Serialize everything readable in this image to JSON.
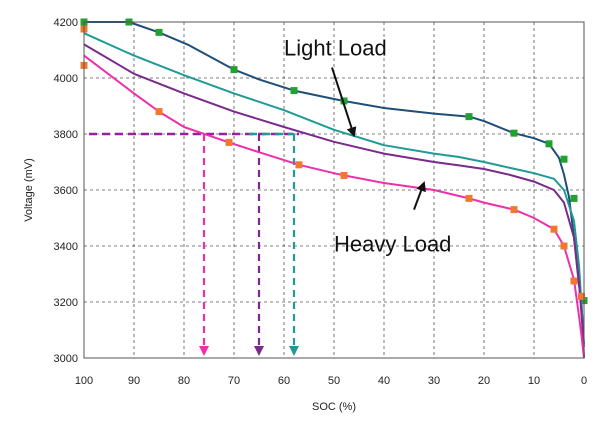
{
  "chart_data": {
    "type": "line",
    "title": "",
    "xlabel": "SOC (%)",
    "ylabel": "Voltage (mV)",
    "xlim": [
      100,
      0
    ],
    "ylim": [
      3000,
      4200
    ],
    "x_ticks": [
      100,
      90,
      80,
      70,
      60,
      50,
      40,
      30,
      20,
      10,
      0
    ],
    "y_ticks": [
      3000,
      3200,
      3400,
      3600,
      3800,
      4000,
      4200
    ],
    "grid": true,
    "grid_style": "dashed",
    "series": [
      {
        "color": "#1f4e79",
        "marker": "square",
        "marker_color": "#22a030",
        "x": [
          100,
          91,
          85,
          79,
          70,
          65,
          58,
          50,
          48,
          40,
          30,
          23,
          20,
          14,
          10,
          7,
          5,
          4,
          3,
          2,
          1,
          0.5,
          0
        ],
        "y": [
          4200,
          4200,
          4163,
          4117,
          4030,
          3995,
          3955,
          3925,
          3918,
          3893,
          3873,
          3862,
          3846,
          3803,
          3785,
          3765,
          3715,
          3655,
          3575,
          3430,
          3260,
          3200,
          3000
        ],
        "marker_x": [
          100,
          91,
          85,
          70,
          58,
          48,
          23,
          14,
          7,
          4,
          2,
          0
        ],
        "marker_y": [
          4200,
          4200,
          4163,
          4030,
          3955,
          3918,
          3862,
          3803,
          3765,
          3710,
          3570,
          3205
        ]
      },
      {
        "color": "#1f9b96",
        "marker": "none",
        "x": [
          100,
          90,
          80,
          70,
          60,
          50,
          40,
          30,
          25,
          20,
          15,
          10,
          6,
          4,
          2,
          1,
          0
        ],
        "y": [
          4160,
          4080,
          4010,
          3945,
          3885,
          3815,
          3760,
          3730,
          3718,
          3700,
          3680,
          3660,
          3640,
          3600,
          3490,
          3330,
          3050
        ],
        "marker_x": [],
        "marker_y": []
      },
      {
        "color": "#7b2a8c",
        "marker": "none",
        "x": [
          100,
          90,
          80,
          70,
          60,
          50,
          40,
          30,
          25,
          20,
          15,
          10,
          6,
          4,
          2,
          1,
          0
        ],
        "y": [
          4120,
          4015,
          3945,
          3880,
          3825,
          3772,
          3730,
          3700,
          3688,
          3675,
          3655,
          3630,
          3600,
          3555,
          3430,
          3270,
          3040
        ],
        "marker_x": [],
        "marker_y": []
      },
      {
        "color": "#ee2faa",
        "marker": "square",
        "marker_color": "#f07830",
        "x": [
          100,
          90,
          85,
          80,
          71,
          65,
          57,
          50,
          48,
          40,
          30,
          23,
          20,
          14,
          10,
          6,
          4,
          2,
          1,
          0.5,
          0
        ],
        "y": [
          4080,
          3945,
          3880,
          3825,
          3770,
          3735,
          3690,
          3660,
          3652,
          3625,
          3600,
          3570,
          3555,
          3530,
          3500,
          3460,
          3400,
          3280,
          3150,
          3080,
          3000
        ],
        "marker_x": [
          100,
          100,
          85,
          71,
          57,
          48,
          23,
          14,
          6,
          4,
          2,
          0.5
        ],
        "marker_y": [
          4175,
          4045,
          3880,
          3770,
          3690,
          3652,
          3570,
          3530,
          3460,
          3400,
          3275,
          3220
        ]
      }
    ],
    "reference_lines": [
      {
        "type": "horizontal",
        "y": 3800,
        "x_from": 99,
        "x_to": 57,
        "color": "#9b1fa0"
      },
      {
        "type": "horizontal",
        "y": 3800,
        "x_from": 67,
        "x_to": 58,
        "color": "#1f9b96"
      },
      {
        "type": "vertical",
        "x": 76,
        "y_from": 3800,
        "y_to": 3000,
        "color": "#ee2faa"
      },
      {
        "type": "vertical",
        "x": 65,
        "y_from": 3800,
        "y_to": 3000,
        "color": "#7b2a8c"
      },
      {
        "type": "vertical",
        "x": 58,
        "y_from": 3800,
        "y_to": 3000,
        "color": "#1f9b96"
      }
    ],
    "annotations": [
      {
        "text": "Light Load",
        "x": 60,
        "y": 4080,
        "arrow_to_x": 46,
        "arrow_to_y": 3795
      },
      {
        "text": "Heavy Load",
        "x": 50,
        "y": 3380,
        "arrow_to_x": 32,
        "arrow_to_y": 3625
      }
    ]
  }
}
